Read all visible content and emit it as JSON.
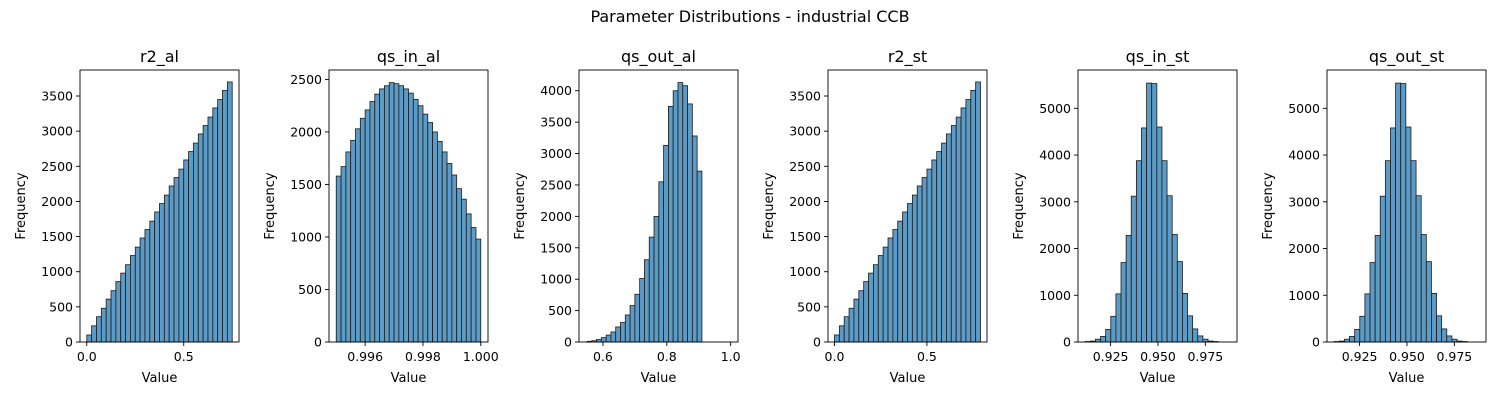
{
  "figure": {
    "suptitle": "Parameter Distributions - industrial CCB",
    "bar_color": "#5b9bc6",
    "edge_color": "#1b1b1b"
  },
  "chart_data": [
    {
      "type": "bar",
      "title": "r2_al",
      "xlabel": "Value",
      "ylabel": "Frequency",
      "xlim": [
        -0.035,
        0.785
      ],
      "ylim": [
        0,
        3870
      ],
      "xticks": [
        0.0,
        0.5
      ],
      "xtick_labels": [
        "0.0",
        "0.5"
      ],
      "yticks": [
        0,
        500,
        1000,
        1500,
        2000,
        2500,
        3000,
        3500
      ],
      "bins": {
        "start": 0.0,
        "width": 0.025
      },
      "values": [
        100,
        230,
        360,
        480,
        610,
        730,
        860,
        980,
        1100,
        1230,
        1350,
        1480,
        1600,
        1720,
        1850,
        1970,
        2090,
        2220,
        2340,
        2460,
        2590,
        2710,
        2830,
        2960,
        3080,
        3200,
        3330,
        3450,
        3580,
        3700
      ]
    },
    {
      "type": "bar",
      "title": "qs_in_al",
      "xlabel": "Value",
      "ylabel": "Frequency",
      "xlim": [
        0.99475,
        1.00025
      ],
      "ylim": [
        0,
        2590
      ],
      "xticks": [
        0.996,
        0.998,
        1.0
      ],
      "xtick_labels": [
        "0.996",
        "0.998",
        "1.000"
      ],
      "yticks": [
        0,
        500,
        1000,
        1500,
        2000,
        2500
      ],
      "bins": {
        "start": 0.995,
        "width": 0.00016667
      },
      "values": [
        1580,
        1670,
        1810,
        1920,
        2030,
        2130,
        2210,
        2290,
        2360,
        2410,
        2440,
        2470,
        2460,
        2440,
        2410,
        2370,
        2310,
        2250,
        2170,
        2090,
        2000,
        1910,
        1810,
        1700,
        1590,
        1460,
        1360,
        1220,
        1090,
        980
      ]
    },
    {
      "type": "bar",
      "title": "qs_out_al",
      "xlabel": "Value",
      "ylabel": "Frequency",
      "xlim": [
        0.525,
        1.023
      ],
      "ylim": [
        0,
        4330
      ],
      "xticks": [
        0.6,
        0.8,
        1.0
      ],
      "xtick_labels": [
        "0.6",
        "0.8",
        "1.0"
      ],
      "yticks": [
        0,
        500,
        1000,
        1500,
        2000,
        2500,
        3000,
        3500,
        4000
      ],
      "bins": {
        "start": 0.55,
        "width": 0.015
      },
      "values": [
        10,
        20,
        40,
        70,
        110,
        160,
        240,
        310,
        430,
        580,
        760,
        1010,
        1310,
        1670,
        2000,
        2550,
        3130,
        3750,
        4000,
        4130,
        4080,
        3790,
        3280,
        2720
      ]
    },
    {
      "type": "bar",
      "title": "r2_st",
      "xlabel": "Value",
      "ylabel": "Frequency",
      "xlim": [
        -0.035,
        0.825
      ],
      "ylim": [
        0,
        3870
      ],
      "xticks": [
        0.0,
        0.5
      ],
      "xtick_labels": [
        "0.0",
        "0.5"
      ],
      "yticks": [
        0,
        500,
        1000,
        1500,
        2000,
        2500,
        3000,
        3500
      ],
      "bins": {
        "start": 0.0,
        "width": 0.02633
      },
      "values": [
        100,
        230,
        360,
        480,
        610,
        730,
        860,
        980,
        1100,
        1230,
        1350,
        1480,
        1600,
        1720,
        1850,
        1970,
        2090,
        2220,
        2340,
        2460,
        2590,
        2710,
        2830,
        2960,
        3080,
        3200,
        3330,
        3450,
        3580,
        3700
      ]
    },
    {
      "type": "bar",
      "title": "qs_in_st",
      "xlabel": "Value",
      "ylabel": "Frequency",
      "xlim": [
        0.9078,
        0.9917
      ],
      "ylim": [
        0,
        5820
      ],
      "xticks": [
        0.925,
        0.95,
        0.975
      ],
      "xtick_labels": [
        "0.925",
        "0.950",
        "0.975"
      ],
      "yticks": [
        0,
        1000,
        2000,
        3000,
        4000,
        5000
      ],
      "bins": {
        "start": 0.9116,
        "width": 0.0027
      },
      "values": [
        10,
        20,
        60,
        120,
        270,
        550,
        1030,
        1700,
        2280,
        3120,
        3880,
        4580,
        5540,
        5530,
        4600,
        3880,
        3130,
        2300,
        1720,
        1040,
        560,
        280,
        130,
        60,
        20,
        10
      ]
    },
    {
      "type": "bar",
      "title": "qs_out_st",
      "xlabel": "Value",
      "ylabel": "Frequency",
      "xlim": [
        0.9078,
        0.9917
      ],
      "ylim": [
        0,
        5820
      ],
      "xticks": [
        0.925,
        0.95,
        0.975
      ],
      "xtick_labels": [
        "0.925",
        "0.950",
        "0.975"
      ],
      "yticks": [
        0,
        1000,
        2000,
        3000,
        4000,
        5000
      ],
      "bins": {
        "start": 0.9116,
        "width": 0.0027
      },
      "values": [
        10,
        20,
        60,
        120,
        270,
        550,
        1030,
        1700,
        2280,
        3120,
        3880,
        4580,
        5540,
        5530,
        4600,
        3880,
        3130,
        2300,
        1720,
        1040,
        560,
        280,
        130,
        60,
        20,
        10
      ]
    }
  ]
}
